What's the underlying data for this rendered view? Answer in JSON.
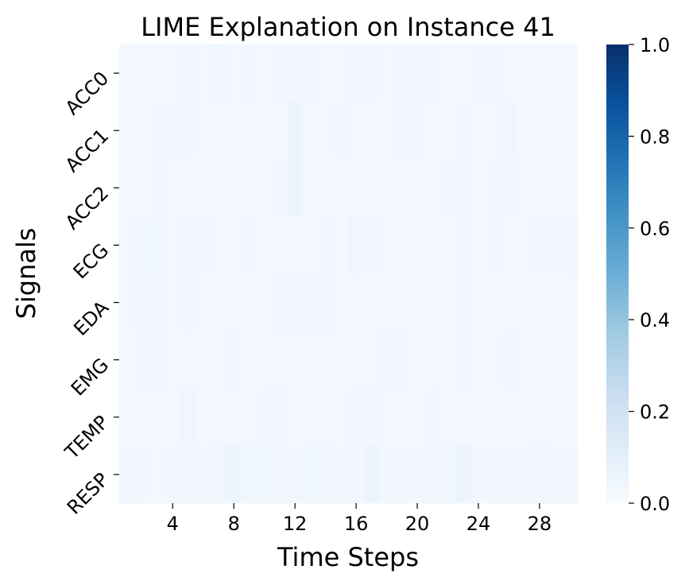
{
  "chart_data": {
    "type": "heatmap",
    "title": "LIME Explanation on Instance 41",
    "xlabel": "Time Steps",
    "ylabel": "Signals",
    "rows": [
      "ACC0",
      "ACC1",
      "ACC2",
      "ECG",
      "EDA",
      "EMG",
      "TEMP",
      "RESP"
    ],
    "n_cols": 30,
    "x_ticks": [
      4,
      8,
      12,
      16,
      20,
      24,
      28
    ],
    "colormap": "Blues",
    "colorbar": {
      "vmin": 0.0,
      "vmax": 1.0,
      "ticks": [
        "0.0",
        "0.2",
        "0.4",
        "0.6",
        "0.8",
        "1.0"
      ]
    },
    "values": [
      [
        0.02,
        0.02,
        0.02,
        0.02,
        0.03,
        0.02,
        0.04,
        0.02,
        0.03,
        0.02,
        0.03,
        0.03,
        0.03,
        0.02,
        0.02,
        0.03,
        0.03,
        0.02,
        0.03,
        0.03,
        0.03,
        0.02,
        0.02,
        0.03,
        0.03,
        0.02,
        0.02,
        0.02,
        0.02,
        0.02
      ],
      [
        0.02,
        0.02,
        0.03,
        0.03,
        0.03,
        0.02,
        0.02,
        0.02,
        0.02,
        0.02,
        0.02,
        0.05,
        0.02,
        0.02,
        0.03,
        0.02,
        0.02,
        0.02,
        0.03,
        0.04,
        0.02,
        0.02,
        0.03,
        0.02,
        0.02,
        0.04,
        0.02,
        0.02,
        0.02,
        0.02
      ],
      [
        0.02,
        0.02,
        0.03,
        0.02,
        0.02,
        0.02,
        0.02,
        0.02,
        0.02,
        0.02,
        0.03,
        0.05,
        0.02,
        0.02,
        0.02,
        0.02,
        0.02,
        0.02,
        0.02,
        0.02,
        0.02,
        0.03,
        0.04,
        0.02,
        0.03,
        0.03,
        0.02,
        0.02,
        0.02,
        0.02
      ],
      [
        0.02,
        0.04,
        0.04,
        0.02,
        0.03,
        0.03,
        0.02,
        0.02,
        0.03,
        0.02,
        0.02,
        0.02,
        0.02,
        0.03,
        0.02,
        0.04,
        0.03,
        0.02,
        0.02,
        0.02,
        0.02,
        0.02,
        0.03,
        0.02,
        0.03,
        0.02,
        0.02,
        0.03,
        0.03,
        0.04
      ],
      [
        0.02,
        0.04,
        0.03,
        0.02,
        0.03,
        0.02,
        0.02,
        0.02,
        0.02,
        0.02,
        0.04,
        0.03,
        0.03,
        0.04,
        0.02,
        0.02,
        0.02,
        0.02,
        0.02,
        0.02,
        0.02,
        0.02,
        0.03,
        0.02,
        0.02,
        0.02,
        0.02,
        0.02,
        0.02,
        0.02
      ],
      [
        0.02,
        0.03,
        0.04,
        0.02,
        0.02,
        0.02,
        0.02,
        0.03,
        0.02,
        0.02,
        0.02,
        0.02,
        0.02,
        0.02,
        0.02,
        0.02,
        0.02,
        0.03,
        0.03,
        0.02,
        0.02,
        0.02,
        0.03,
        0.02,
        0.02,
        0.03,
        0.02,
        0.02,
        0.02,
        0.02
      ],
      [
        0.02,
        0.02,
        0.02,
        0.02,
        0.04,
        0.02,
        0.02,
        0.02,
        0.02,
        0.03,
        0.04,
        0.02,
        0.02,
        0.02,
        0.02,
        0.03,
        0.03,
        0.02,
        0.02,
        0.02,
        0.03,
        0.02,
        0.02,
        0.02,
        0.02,
        0.02,
        0.02,
        0.02,
        0.02,
        0.02
      ],
      [
        0.03,
        0.03,
        0.02,
        0.03,
        0.03,
        0.03,
        0.04,
        0.05,
        0.04,
        0.04,
        0.03,
        0.03,
        0.04,
        0.04,
        0.03,
        0.03,
        0.05,
        0.03,
        0.03,
        0.03,
        0.03,
        0.04,
        0.05,
        0.03,
        0.03,
        0.03,
        0.03,
        0.04,
        0.03,
        0.03
      ]
    ]
  }
}
